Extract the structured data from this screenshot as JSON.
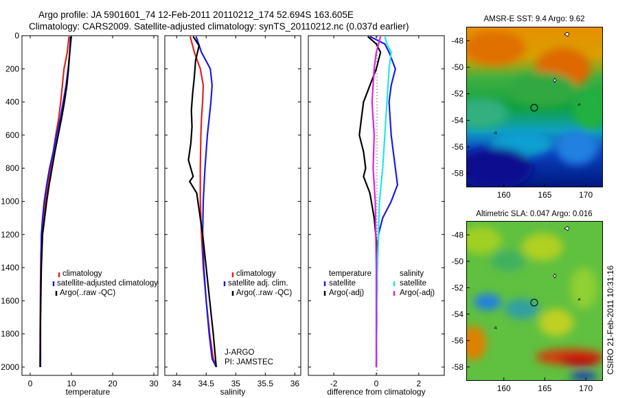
{
  "header": {
    "line1": "Argo profile: JA 5901601_74 12-Feb-2011 20110212_174 52.694S 163.605E",
    "line2": "Climatology: CARS2009. Satellite-adjusted climatology: synTS_20110212.nc (0.037d earlier)"
  },
  "side_label": "CSIRO 21-Feb-2011 10:31:16",
  "colors": {
    "climatology": "#e02020",
    "satellite": "#1a1ae6",
    "argo": "#000000",
    "argo_salinity_diff": "#e020e0",
    "satellite_salinity_diff": "#20e6e6",
    "zero_line": "#555555"
  },
  "chart_data": [
    {
      "type": "line",
      "xlabel": "temperature",
      "ylabel": "",
      "xlim": [
        -2,
        31
      ],
      "ylim": [
        2050,
        0
      ],
      "xticks": [
        0,
        10,
        20,
        30
      ],
      "yticks": [
        0,
        200,
        400,
        600,
        800,
        1000,
        1200,
        1400,
        1600,
        1800,
        2000
      ],
      "legend_entries": [
        "climatology",
        "satellite-adjusted climatology",
        "Argo(..raw -QC)"
      ],
      "series": [
        {
          "name": "climatology",
          "color": "#e02020",
          "x": [
            9.4,
            9.0,
            8.2,
            7.8,
            7.4,
            6.9,
            6.2,
            5.6,
            5.0,
            4.3,
            3.7,
            3.2,
            2.9,
            2.6,
            2.5,
            2.4,
            2.4
          ],
          "y": [
            5,
            100,
            200,
            300,
            400,
            500,
            600,
            700,
            800,
            900,
            1000,
            1100,
            1200,
            1300,
            1500,
            1800,
            2000
          ]
        },
        {
          "name": "satellite-adjusted climatology",
          "color": "#1a1ae6",
          "x": [
            10.0,
            9.6,
            9.2,
            8.7,
            8.0,
            7.3,
            6.4,
            5.6,
            4.7,
            4.0,
            3.4,
            3.0,
            2.7,
            2.6,
            2.5,
            2.5
          ],
          "y": [
            5,
            100,
            200,
            300,
            400,
            500,
            600,
            700,
            800,
            900,
            1000,
            1100,
            1200,
            1400,
            1700,
            2000
          ]
        },
        {
          "name": "Argo(..raw -QC)",
          "color": "#000000",
          "x": [
            9.8,
            9.6,
            9.3,
            8.9,
            8.3,
            7.6,
            6.8,
            6.0,
            5.3,
            4.6,
            4.0,
            3.5,
            3.0,
            2.7,
            2.5,
            2.4
          ],
          "y": [
            5,
            100,
            200,
            300,
            400,
            500,
            600,
            700,
            800,
            900,
            1000,
            1100,
            1200,
            1400,
            1700,
            2000
          ]
        }
      ]
    },
    {
      "type": "line",
      "xlabel": "salinity",
      "ylabel": "",
      "xlim": [
        33.8,
        36.1
      ],
      "ylim": [
        2050,
        0
      ],
      "xticks": [
        34,
        34.5,
        35,
        35.5,
        36
      ],
      "legend_entries": [
        "climatology",
        "satellite adj. clim.",
        "Argo(..raw -QC)"
      ],
      "annotation_lines": [
        "J-ARGO",
        "PI: JAMSTEC"
      ],
      "series": [
        {
          "name": "climatology",
          "color": "#e02020",
          "x": [
            34.23,
            34.3,
            34.4,
            34.45,
            34.44,
            34.42,
            34.41,
            34.4,
            34.4,
            34.42,
            34.45,
            34.5,
            34.56,
            34.62,
            34.67
          ],
          "y": [
            5,
            100,
            200,
            300,
            400,
            500,
            600,
            800,
            1000,
            1200,
            1400,
            1600,
            1800,
            1950,
            2000
          ]
        },
        {
          "name": "satellite adj. clim.",
          "color": "#1a1ae6",
          "x": [
            34.33,
            34.42,
            34.57,
            34.6,
            34.58,
            34.55,
            34.52,
            34.48,
            34.45,
            34.44,
            34.46,
            34.5,
            34.55,
            34.6,
            34.67
          ],
          "y": [
            5,
            100,
            200,
            300,
            400,
            500,
            600,
            800,
            1000,
            1200,
            1400,
            1600,
            1800,
            1950,
            2000
          ]
        },
        {
          "name": "Argo(..raw -QC)",
          "color": "#000000",
          "x": [
            34.28,
            34.38,
            34.32,
            34.3,
            34.27,
            34.25,
            34.26,
            34.24,
            34.2,
            34.28,
            34.22,
            34.34,
            34.38,
            34.44,
            34.5,
            34.56,
            34.62,
            34.67
          ],
          "y": [
            5,
            60,
            150,
            250,
            350,
            450,
            550,
            650,
            750,
            850,
            880,
            950,
            1050,
            1200,
            1400,
            1600,
            1800,
            2000
          ]
        }
      ]
    },
    {
      "type": "line",
      "xlabel": "difference from climatology",
      "ylabel": "",
      "xlim": [
        -3.2,
        3.2
      ],
      "ylim": [
        2050,
        0
      ],
      "xticks": [
        -2,
        0,
        2
      ],
      "legend_entries": [
        "temperature",
        "satellite",
        "Argo(-adj)",
        "salinity",
        "satellite",
        "Argo(-adj)"
      ],
      "series": [
        {
          "name": "satellite",
          "color": "#1a1ae6",
          "x": [
            -0.3,
            0.4,
            0.6,
            0.9,
            0.7,
            0.6,
            0.7,
            0.9,
            1.0,
            0.7,
            0.3,
            0.1,
            0.05,
            0.02,
            0.0
          ],
          "y": [
            5,
            50,
            100,
            200,
            300,
            400,
            600,
            800,
            900,
            1000,
            1100,
            1200,
            1400,
            1700,
            2000
          ]
        },
        {
          "name": "Argo(-adj)",
          "color": "#000000",
          "x": [
            -0.4,
            0.0,
            0.2,
            0.0,
            -0.3,
            -0.6,
            -0.7,
            -0.8,
            -0.6,
            -0.5,
            -0.6,
            -0.3,
            -0.1,
            0.05,
            0.0
          ],
          "y": [
            5,
            50,
            100,
            200,
            300,
            400,
            500,
            600,
            700,
            800,
            850,
            950,
            1100,
            1300,
            2000
          ]
        },
        {
          "name": "satellite",
          "color": "#20e6e6",
          "x": [
            0.4,
            0.5,
            0.7,
            0.6,
            0.5,
            0.4,
            0.3,
            0.15,
            0.05,
            0.0
          ],
          "y": [
            5,
            50,
            100,
            200,
            400,
            600,
            800,
            1000,
            1400,
            2000
          ]
        },
        {
          "name": "Argo(-adj)",
          "color": "#e020e0",
          "x": [
            0.2,
            0.0,
            -0.1,
            -0.2,
            -0.1,
            -0.15,
            -0.05,
            0.0,
            0.0
          ],
          "y": [
            5,
            100,
            200,
            400,
            600,
            800,
            1000,
            1400,
            2000
          ]
        }
      ]
    },
    {
      "type": "heatmap",
      "title": "AMSR-E SST: 9.4 Argo: 9.62",
      "xlim": [
        155.5,
        172
      ],
      "ylim": [
        -59,
        -47
      ],
      "xticks": [
        160,
        165,
        170
      ],
      "yticks": [
        -48,
        -50,
        -52,
        -54,
        -56,
        -58
      ],
      "marker": {
        "lon": 163.605,
        "lat": -52.694
      }
    },
    {
      "type": "heatmap",
      "title": "Altimetric SLA: 0.047 Argo: 0.016",
      "xlim": [
        155.5,
        172
      ],
      "ylim": [
        -59,
        -47
      ],
      "xticks": [
        160,
        165,
        170
      ],
      "yticks": [
        -48,
        -50,
        -52,
        -54,
        -56,
        -58
      ],
      "marker": {
        "lon": 163.605,
        "lat": -52.694
      }
    }
  ]
}
